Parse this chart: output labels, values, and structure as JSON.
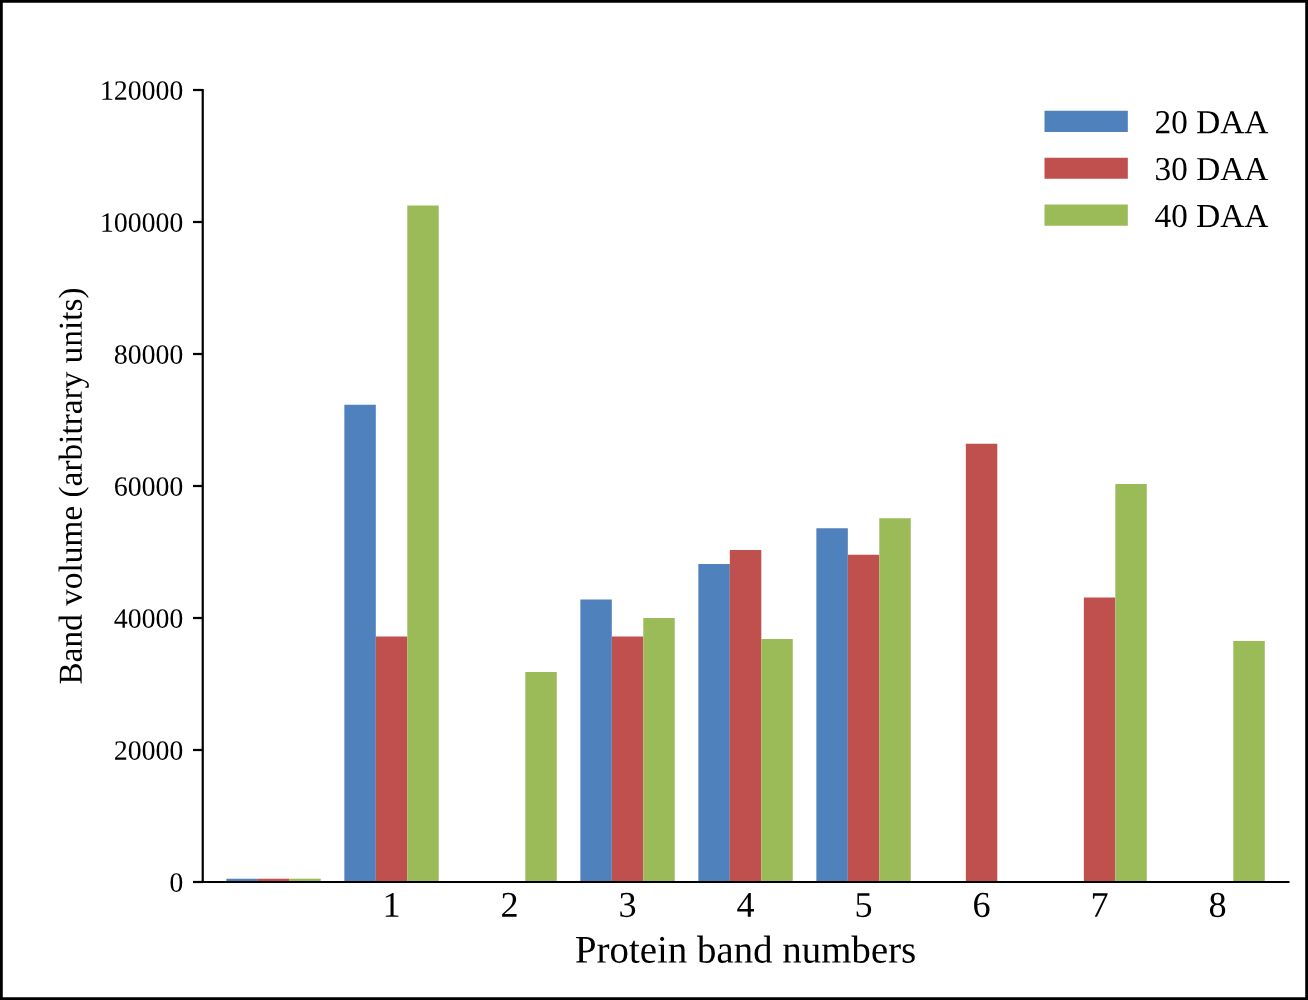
{
  "chart_data": {
    "type": "bar",
    "xlabel": "Protein band numbers",
    "ylabel": "Band volume (arbitrary units)",
    "categories": [
      null,
      "1",
      "2",
      "3",
      "4",
      "5",
      "6",
      "7",
      "8"
    ],
    "series": [
      {
        "name": "20 DAA",
        "color": "#4f81bd",
        "values": [
          500,
          72300,
          null,
          42800,
          48200,
          53600,
          null,
          null,
          null
        ]
      },
      {
        "name": "30 DAA",
        "color": "#c0504d",
        "values": [
          500,
          37200,
          null,
          37200,
          50300,
          49600,
          66400,
          43100,
          null
        ]
      },
      {
        "name": "40 DAA",
        "color": "#9bbb59",
        "values": [
          500,
          102500,
          31800,
          40000,
          36800,
          55100,
          null,
          60300,
          36500
        ]
      }
    ],
    "ylim": [
      0,
      120000
    ],
    "yticks": [
      0,
      20000,
      40000,
      60000,
      80000,
      100000,
      120000
    ],
    "grid": false,
    "legend": "top right"
  }
}
